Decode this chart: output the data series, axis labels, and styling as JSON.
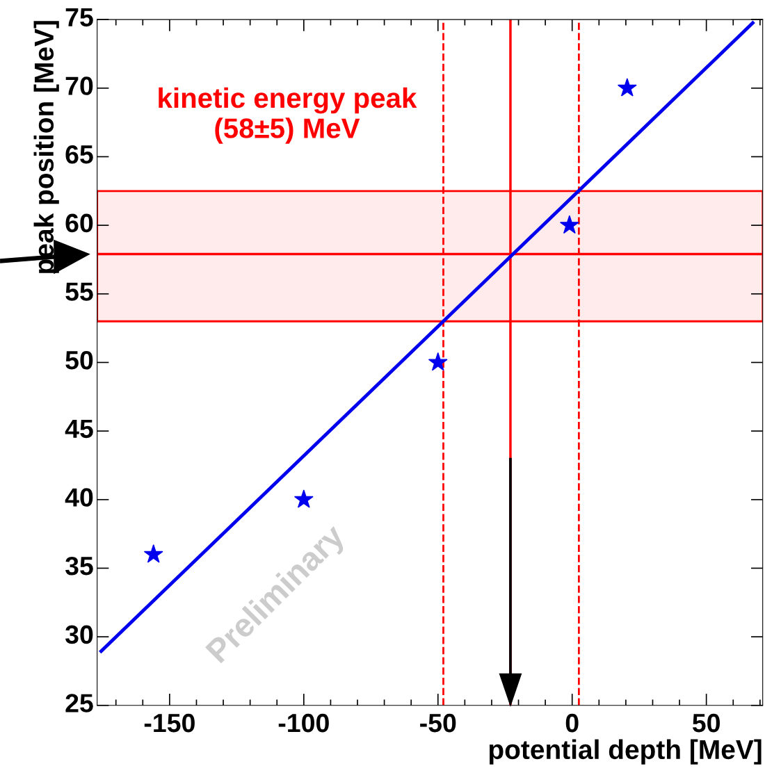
{
  "chart_data": {
    "type": "scatter",
    "xlabel": "potential depth [MeV]",
    "ylabel": "peak position [MeV]",
    "xlim": [
      -177,
      71
    ],
    "ylim": [
      25,
      75
    ],
    "xticks": [
      -150,
      -100,
      -50,
      0,
      50
    ],
    "yticks": [
      25,
      30,
      35,
      40,
      45,
      50,
      55,
      60,
      65,
      70,
      75
    ],
    "series": [
      {
        "color": "#0000ee",
        "marker": "star",
        "x": [
          -156,
          -100,
          -50,
          -1,
          20.5
        ],
        "values": [
          36,
          40,
          50,
          60,
          70
        ]
      },
      {
        "type": "line",
        "color": "#0000ee",
        "line_style": "solid",
        "marker": "none",
        "x": [
          -175.5,
          67.3
        ],
        "values": [
          28.95,
          74.75
        ]
      }
    ],
    "ref_lines": [
      {
        "axis": "x",
        "value": -23,
        "color": "#ff0000",
        "line_style": "solid"
      },
      {
        "axis": "x",
        "value": -48,
        "color": "#ff0000",
        "line_style": "dashed"
      },
      {
        "axis": "x",
        "value": 2.5,
        "color": "#ff0000",
        "line_style": "dashed"
      },
      {
        "axis": "y",
        "value": 57.9,
        "color": "#ff0000",
        "line_style": "solid"
      }
    ],
    "bands": [
      {
        "axis": "y",
        "from": 53,
        "to": 62.5,
        "color": "#ff0000"
      }
    ],
    "annotations": [
      "kinetic energy peak\n(58±5) MeV",
      "Preliminary"
    ],
    "grid": false,
    "legend": false
  }
}
